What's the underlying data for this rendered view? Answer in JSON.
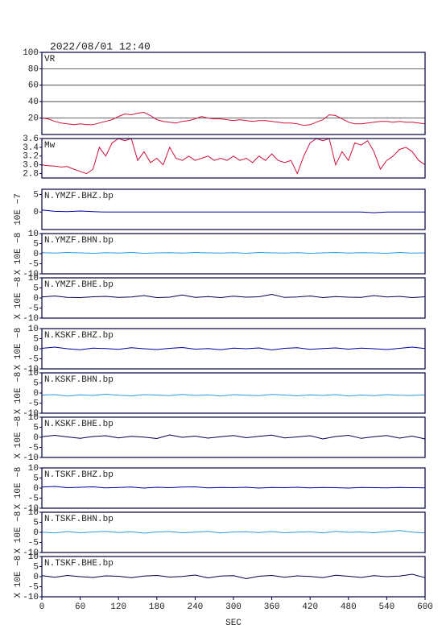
{
  "chart_data": [
    {
      "type": "line",
      "title": "2022/08/01 12:40",
      "ylim": [
        0,
        100
      ],
      "yticks": [
        20,
        40,
        60,
        80,
        100
      ],
      "grid": true,
      "x": [
        0,
        10,
        20,
        30,
        40,
        50,
        60,
        70,
        80,
        90,
        100,
        110,
        120,
        130,
        140,
        150,
        160,
        170,
        180,
        190,
        200,
        210,
        220,
        230,
        240,
        250,
        260,
        270,
        280,
        290,
        300,
        310,
        320,
        330,
        340,
        350,
        360,
        370,
        380,
        390,
        400,
        410,
        420,
        430,
        440,
        450,
        460,
        470,
        480,
        490,
        500,
        510,
        520,
        530,
        540,
        550,
        560,
        570,
        580,
        590,
        600
      ],
      "series": [
        {
          "name": "VR",
          "color": "#d0103a",
          "values": [
            20,
            19,
            16,
            14,
            13,
            12,
            13,
            12,
            12,
            14,
            16,
            18,
            22,
            25,
            24,
            26,
            27,
            23,
            18,
            16,
            15,
            14,
            16,
            17,
            19,
            22,
            20,
            19,
            19,
            18,
            17,
            18,
            17,
            16,
            17,
            17,
            16,
            15,
            14,
            14,
            13,
            11,
            12,
            15,
            18,
            24,
            23,
            19,
            15,
            13,
            13,
            14,
            15,
            16,
            16,
            15,
            16,
            15,
            15,
            14,
            13
          ]
        }
      ]
    },
    {
      "type": "line",
      "ylim": [
        2.7,
        3.6
      ],
      "yticks": [
        {
          "value": 2.8,
          "label": "2.8"
        },
        {
          "value": 3,
          "label": "3.0"
        },
        3.2,
        3.4,
        3.6
      ],
      "x": [
        0,
        10,
        20,
        30,
        40,
        50,
        60,
        70,
        80,
        90,
        100,
        110,
        120,
        130,
        140,
        150,
        160,
        170,
        180,
        190,
        200,
        210,
        220,
        230,
        240,
        250,
        260,
        270,
        280,
        290,
        300,
        310,
        320,
        330,
        340,
        350,
        360,
        370,
        380,
        390,
        400,
        410,
        420,
        430,
        440,
        450,
        460,
        470,
        480,
        490,
        500,
        510,
        520,
        530,
        540,
        550,
        560,
        570,
        580,
        590,
        600
      ],
      "series": [
        {
          "name": "Mw",
          "color": "#d0103a",
          "values": [
            3.0,
            2.98,
            2.97,
            2.95,
            2.96,
            2.9,
            2.85,
            2.8,
            2.9,
            3.4,
            3.2,
            3.5,
            3.6,
            3.55,
            3.6,
            3.1,
            3.3,
            3.05,
            3.15,
            3.0,
            3.4,
            3.15,
            3.1,
            3.2,
            3.1,
            3.15,
            3.2,
            3.1,
            3.15,
            3.1,
            3.2,
            3.1,
            3.15,
            3.05,
            3.2,
            3.1,
            3.25,
            3.1,
            3.05,
            3.1,
            2.8,
            3.2,
            3.5,
            3.6,
            3.55,
            3.6,
            3.0,
            3.3,
            3.1,
            3.5,
            3.45,
            3.55,
            3.3,
            2.9,
            3.1,
            3.2,
            3.35,
            3.4,
            3.3,
            3.1,
            3.0
          ]
        }
      ]
    },
    {
      "type": "line",
      "ylabel": "10E −7",
      "ylim": [
        -5,
        6.5
      ],
      "yticks": [
        0,
        5
      ],
      "x": [
        0,
        20,
        40,
        60,
        80,
        100,
        120,
        140,
        160,
        180,
        200,
        220,
        240,
        260,
        280,
        300,
        320,
        340,
        360,
        380,
        400,
        420,
        440,
        460,
        480,
        500,
        520,
        540,
        560,
        580,
        600
      ],
      "series": [
        {
          "name": "N.YMZF.BHZ.bp",
          "color": "#0000a0",
          "values": [
            0.6,
            0.2,
            0.1,
            0.3,
            0.1,
            0,
            0,
            0,
            0,
            0,
            0,
            0,
            0,
            0,
            0,
            0,
            0,
            0,
            0,
            0,
            0,
            0,
            0,
            0,
            0,
            0,
            -0.2,
            0,
            0,
            0,
            0
          ]
        }
      ]
    },
    {
      "type": "line",
      "ylabel": "X 10E −8",
      "ylim": [
        -10,
        10
      ],
      "yticks": [
        -10,
        -5,
        0,
        5,
        10
      ],
      "x": [
        0,
        20,
        40,
        60,
        80,
        100,
        120,
        140,
        160,
        180,
        200,
        220,
        240,
        260,
        280,
        300,
        320,
        340,
        360,
        380,
        400,
        420,
        440,
        460,
        480,
        500,
        520,
        540,
        560,
        580,
        600
      ],
      "series": [
        {
          "name": "N.YMZF.BHN.bp",
          "color": "#3399dd",
          "values": [
            0.5,
            0.3,
            0.6,
            0.4,
            0.2,
            0.5,
            0.3,
            0.6,
            0.2,
            0.4,
            0.5,
            0.3,
            0.6,
            0.4,
            0.3,
            0.5,
            0.2,
            0.6,
            0.4,
            0.3,
            0.5,
            0.2,
            0.4,
            0.6,
            0.3,
            0.5,
            0.4,
            0.2,
            0.6,
            0.3,
            0.4
          ]
        }
      ]
    },
    {
      "type": "line",
      "ylabel": "X 10E −8",
      "ylim": [
        -10,
        10
      ],
      "yticks": [
        -10,
        -5,
        0,
        5,
        10
      ],
      "x": [
        0,
        20,
        40,
        60,
        80,
        100,
        120,
        140,
        160,
        180,
        200,
        220,
        240,
        260,
        280,
        300,
        320,
        340,
        360,
        380,
        400,
        420,
        440,
        460,
        480,
        500,
        520,
        540,
        560,
        580,
        600
      ],
      "series": [
        {
          "name": "N.YMZF.BHE.bp",
          "color": "#000050",
          "values": [
            0.5,
            1.0,
            0.3,
            0.2,
            0.6,
            0.8,
            0.3,
            0.5,
            1.2,
            0.2,
            0.4,
            1.5,
            0.3,
            0.7,
            0.2,
            0.9,
            0.4,
            0.6,
            1.8,
            0.3,
            0.5,
            1.0,
            0.2,
            0.7,
            0.4,
            0.3,
            1.2,
            0.5,
            0.8,
            0.2,
            0.6
          ]
        }
      ]
    },
    {
      "type": "line",
      "ylabel": "X 10E −8",
      "ylim": [
        -10,
        10
      ],
      "yticks": [
        -10,
        -5,
        0,
        5,
        10
      ],
      "x": [
        0,
        20,
        40,
        60,
        80,
        100,
        120,
        140,
        160,
        180,
        200,
        220,
        240,
        260,
        280,
        300,
        320,
        340,
        360,
        380,
        400,
        420,
        440,
        460,
        480,
        500,
        520,
        540,
        560,
        580,
        600
      ],
      "series": [
        {
          "name": "N.KSKF.BHZ.bp",
          "color": "#0000a0",
          "values": [
            0.2,
            0.8,
            0,
            -0.5,
            0.3,
            0.1,
            -0.3,
            0.5,
            0,
            -0.4,
            0.2,
            0.6,
            -0.2,
            0.1,
            -0.5,
            0.3,
            0,
            0.4,
            -0.6,
            0.2,
            0.5,
            -0.3,
            0.1,
            0.4,
            -0.2,
            0.3,
            0,
            -0.4,
            0.2,
            0.8,
            0.1
          ]
        }
      ]
    },
    {
      "type": "line",
      "ylabel": "X 10E −8",
      "ylim": [
        -10,
        10
      ],
      "yticks": [
        -10,
        -5,
        0,
        5,
        10
      ],
      "x": [
        0,
        20,
        40,
        60,
        80,
        100,
        120,
        140,
        160,
        180,
        200,
        220,
        240,
        260,
        280,
        300,
        320,
        340,
        360,
        380,
        400,
        420,
        440,
        460,
        480,
        500,
        520,
        540,
        560,
        580,
        600
      ],
      "series": [
        {
          "name": "N.KSKF.BHN.bp",
          "color": "#3399dd",
          "values": [
            -1.0,
            -0.8,
            -1.5,
            -0.9,
            -1.2,
            -0.6,
            -1.1,
            -1.4,
            -0.8,
            -1.0,
            -1.3,
            -0.7,
            -1.2,
            -0.9,
            -1.5,
            -0.8,
            -1.1,
            -1.3,
            -0.7,
            -1.0,
            -1.4,
            -0.9,
            -1.2,
            -0.8,
            -1.5,
            -1.0,
            -1.3,
            -0.8,
            -1.1,
            -1.2,
            -0.9
          ]
        }
      ]
    },
    {
      "type": "line",
      "ylabel": "X 10E −8",
      "ylim": [
        -10,
        10
      ],
      "yticks": [
        -10,
        -5,
        0,
        5,
        10
      ],
      "x": [
        0,
        20,
        40,
        60,
        80,
        100,
        120,
        140,
        160,
        180,
        200,
        220,
        240,
        260,
        280,
        300,
        320,
        340,
        360,
        380,
        400,
        420,
        440,
        460,
        480,
        500,
        520,
        540,
        560,
        580,
        600
      ],
      "series": [
        {
          "name": "N.KSKF.BHE.bp",
          "color": "#000050",
          "values": [
            0.3,
            1.0,
            0.2,
            -0.5,
            0.4,
            0.8,
            -0.3,
            0.5,
            0.1,
            -0.6,
            1.2,
            0,
            0.6,
            -0.4,
            0.3,
            0.9,
            -0.2,
            0.5,
            1.1,
            -0.3,
            0.2,
            0.8,
            -0.8,
            0.4,
            1.0,
            -0.5,
            0.3,
            0.9,
            -0.4,
            0.6,
            -0.8
          ]
        }
      ]
    },
    {
      "type": "line",
      "ylabel": "X 10E −8",
      "ylim": [
        -10,
        10
      ],
      "yticks": [
        -10,
        -5,
        0,
        5,
        10
      ],
      "x": [
        0,
        20,
        40,
        60,
        80,
        100,
        120,
        140,
        160,
        180,
        200,
        220,
        240,
        260,
        280,
        300,
        320,
        340,
        360,
        380,
        400,
        420,
        440,
        460,
        480,
        500,
        520,
        540,
        560,
        580,
        600
      ],
      "series": [
        {
          "name": "N.TSKF.BHZ.bp",
          "color": "#0000a0",
          "values": [
            0.5,
            0.8,
            0.2,
            0.4,
            0.6,
            0.1,
            0.3,
            0.5,
            0,
            0.4,
            0.2,
            0.5,
            0.6,
            0.1,
            0.3,
            0.2,
            0.4,
            0,
            0.3,
            0.2,
            0.4,
            0.1,
            0.3,
            0.2,
            0,
            0.3,
            0.2,
            0.1,
            0.3,
            0.2,
            0.1
          ]
        }
      ]
    },
    {
      "type": "line",
      "ylabel": "X 10E −8",
      "ylim": [
        -10,
        10
      ],
      "yticks": [
        -10,
        -5,
        0,
        5,
        10
      ],
      "x": [
        0,
        20,
        40,
        60,
        80,
        100,
        120,
        140,
        160,
        180,
        200,
        220,
        240,
        260,
        280,
        300,
        320,
        340,
        360,
        380,
        400,
        420,
        440,
        460,
        480,
        500,
        520,
        540,
        560,
        580,
        600
      ],
      "series": [
        {
          "name": "N.TSKF.BHN.bp",
          "color": "#3399dd",
          "values": [
            0.1,
            -0.3,
            0.4,
            -0.2,
            0.2,
            0.5,
            -0.1,
            0.3,
            -0.4,
            0.2,
            0.4,
            -0.2,
            0.1,
            0.5,
            -0.3,
            0.2,
            0.3,
            -0.1,
            0.4,
            -0.2,
            0.1,
            0.3,
            -0.3,
            0.5,
            0,
            0.2,
            -0.2,
            0.4,
            0.9,
            0.1,
            -0.3
          ]
        }
      ]
    },
    {
      "type": "line",
      "ylabel": "X 10E −8",
      "ylim": [
        -10,
        10
      ],
      "yticks": [
        -10,
        -5,
        0,
        5,
        10
      ],
      "xlim": [
        0,
        600
      ],
      "xticks": [
        0,
        60,
        120,
        180,
        240,
        300,
        360,
        420,
        480,
        540,
        600
      ],
      "xlabel": "SEC",
      "x": [
        0,
        20,
        40,
        60,
        80,
        100,
        120,
        140,
        160,
        180,
        200,
        220,
        240,
        260,
        280,
        300,
        320,
        340,
        360,
        380,
        400,
        420,
        440,
        460,
        480,
        500,
        520,
        540,
        560,
        580,
        600
      ],
      "series": [
        {
          "name": "N.TSKF.BHE.bp",
          "color": "#000050",
          "values": [
            0.5,
            -0.3,
            0.6,
            0,
            -0.4,
            0.4,
            0.2,
            -0.5,
            0.3,
            0.6,
            -0.2,
            0.1,
            0.8,
            -0.6,
            0.3,
            0.5,
            -1.0,
            0.2,
            0.6,
            -0.3,
            0.4,
            0.1,
            -0.5,
            0.7,
            0.2,
            -0.4,
            0.5,
            0,
            0.3,
            1.2,
            -0.5
          ]
        }
      ]
    }
  ]
}
